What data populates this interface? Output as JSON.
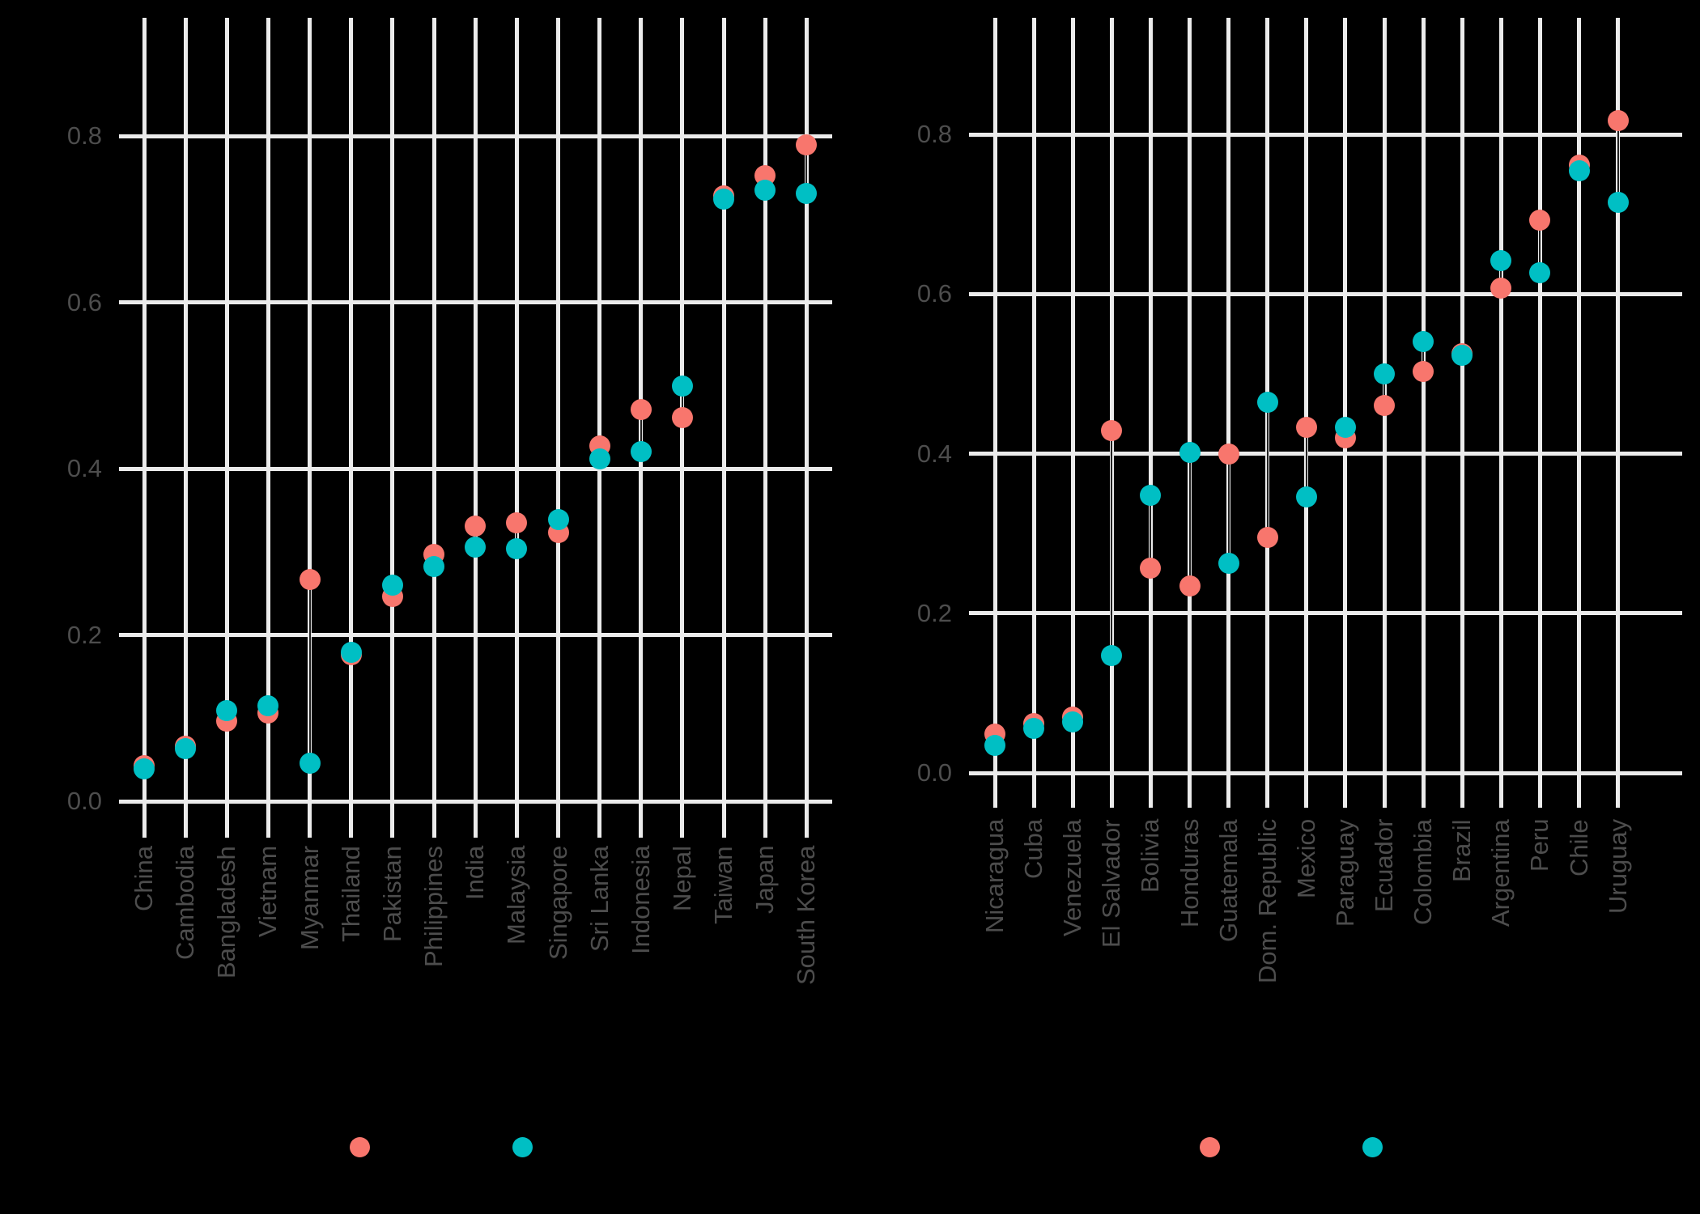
{
  "colors": {
    "background": "#000000",
    "grid": "#ebebeb",
    "tick_text": "#4d4d4d",
    "series_a": "#f8766d",
    "series_b": "#00bfc4",
    "segment": "#222222"
  },
  "chart_data": [
    {
      "type": "dumbbell",
      "panel": "left",
      "title": "",
      "xlabel": "",
      "ylabel": "",
      "ylim": [
        0,
        0.88
      ],
      "yticks": [
        "0.0",
        "0.2",
        "0.4",
        "0.6",
        "0.8"
      ],
      "grid": true,
      "legend_position": "bottom",
      "legend": [
        {
          "label": "",
          "color": "#f8766d"
        },
        {
          "label": "",
          "color": "#00bfc4"
        }
      ],
      "categories": [
        "China",
        "Cambodia",
        "Bangladesh",
        "Vietnam",
        "Myanmar",
        "Thailand",
        "Pakistan",
        "Philippines",
        "India",
        "Malaysia",
        "Singapore",
        "Sri Lanka",
        "Indonesia",
        "Nepal",
        "Taiwan",
        "Japan",
        "South Korea"
      ],
      "series": [
        {
          "name": "red",
          "color": "#f8766d",
          "values": [
            0.043,
            0.066,
            0.096,
            0.106,
            0.267,
            0.176,
            0.246,
            0.297,
            0.331,
            0.335,
            0.323,
            0.427,
            0.471,
            0.462,
            0.728,
            0.753,
            0.79
          ]
        },
        {
          "name": "teal",
          "color": "#00bfc4",
          "values": [
            0.039,
            0.063,
            0.109,
            0.115,
            0.046,
            0.179,
            0.26,
            0.282,
            0.306,
            0.304,
            0.339,
            0.412,
            0.421,
            0.5,
            0.724,
            0.735,
            0.731
          ]
        }
      ]
    },
    {
      "type": "dumbbell",
      "panel": "right",
      "title": "",
      "xlabel": "",
      "ylabel": "",
      "ylim": [
        0,
        0.86
      ],
      "yticks": [
        "0.0",
        "0.2",
        "0.4",
        "0.6",
        "0.8"
      ],
      "grid": true,
      "legend_position": "bottom",
      "legend": [
        {
          "label": "",
          "color": "#f8766d"
        },
        {
          "label": "",
          "color": "#00bfc4"
        }
      ],
      "categories": [
        "Nicaragua",
        "Cuba",
        "Venezuela",
        "El Salvador",
        "Bolivia",
        "Honduras",
        "Guatemala",
        "Dom. Republic",
        "Mexico",
        "Paraguay",
        "Ecuador",
        "Colombia",
        "Brazil",
        "Argentina",
        "Peru",
        "Chile",
        "Uruguay"
      ],
      "series": [
        {
          "name": "red",
          "color": "#f8766d",
          "values": [
            0.049,
            0.062,
            0.07,
            0.429,
            0.257,
            0.234,
            0.4,
            0.295,
            0.433,
            0.42,
            0.46,
            0.503,
            0.525,
            0.607,
            0.693,
            0.762,
            0.817
          ]
        },
        {
          "name": "teal",
          "color": "#00bfc4",
          "values": [
            0.034,
            0.056,
            0.064,
            0.147,
            0.348,
            0.402,
            0.263,
            0.465,
            0.346,
            0.433,
            0.5,
            0.541,
            0.523,
            0.642,
            0.627,
            0.755,
            0.715
          ]
        }
      ]
    }
  ]
}
